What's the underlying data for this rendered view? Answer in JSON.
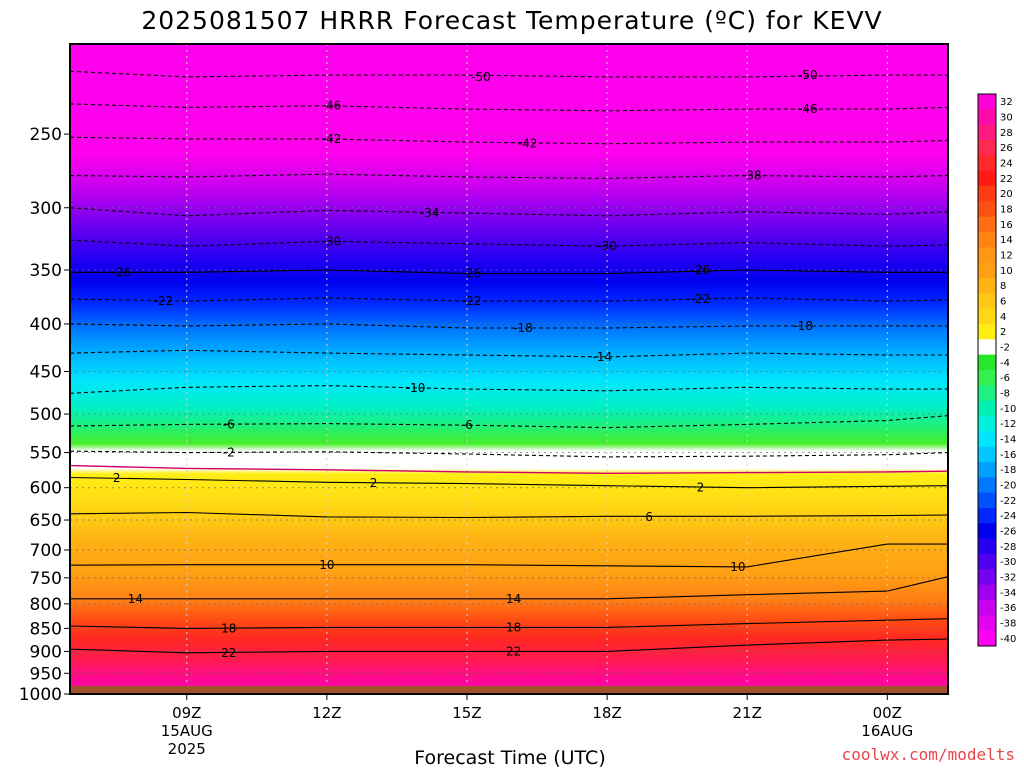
{
  "chart_data": {
    "type": "heatmap",
    "title": "2025081507 HRRR Forecast Temperature (ºC) for KEVV",
    "xlabel": "Forecast Time (UTC)",
    "ylabel": "",
    "credit": "coolwx.com/modelts",
    "y_scale": "log",
    "ylim": [
      1000,
      200
    ],
    "xlim": [
      6.5,
      25.3
    ],
    "y_ticks": [
      250,
      300,
      350,
      400,
      450,
      500,
      550,
      600,
      650,
      700,
      750,
      800,
      850,
      900,
      950,
      1000
    ],
    "x_ticks": [
      {
        "hour": 9,
        "label": "09Z",
        "date": "15AUG",
        "year": "2025"
      },
      {
        "hour": 12,
        "label": "12Z"
      },
      {
        "hour": 15,
        "label": "15Z"
      },
      {
        "hour": 18,
        "label": "18Z"
      },
      {
        "hour": 21,
        "label": "21Z"
      },
      {
        "hour": 24,
        "label": "00Z",
        "date": "16AUG"
      }
    ],
    "surface_pressure": 980,
    "colorbar": {
      "levels": [
        32,
        30,
        28,
        26,
        24,
        22,
        20,
        18,
        16,
        14,
        12,
        10,
        8,
        6,
        4,
        2,
        -2,
        -4,
        -6,
        -8,
        -10,
        -12,
        -14,
        -16,
        -18,
        -20,
        -22,
        -24,
        -26,
        -28,
        -30,
        -32,
        -34,
        -36,
        -38,
        -40
      ],
      "colors": [
        "#ff00d8",
        "#ff0aaa",
        "#ff1a80",
        "#ff2a50",
        "#ff2a28",
        "#ff1a14",
        "#ff3c14",
        "#ff5014",
        "#ff6e14",
        "#ff8214",
        "#ff9614",
        "#ffa014",
        "#ffb414",
        "#ffc814",
        "#ffd714",
        "#ffee14",
        "#ffffff",
        "#28e628",
        "#32f050",
        "#1ef082",
        "#00f0b4",
        "#00f0dc",
        "#00e6ff",
        "#00c8ff",
        "#00a0ff",
        "#0078ff",
        "#0050ff",
        "#0028ff",
        "#0000f0",
        "#2800f0",
        "#5000f0",
        "#7800f0",
        "#a000f0",
        "#c800f0",
        "#e600f0",
        "#ff00f0"
      ]
    },
    "series": [
      {
        "name": "-50",
        "hours": [
          6.5,
          9,
          12,
          15,
          18,
          21,
          24,
          25.3
        ],
        "pressure": [
          214,
          217,
          216,
          216,
          217,
          217,
          216,
          216
        ],
        "dashed": true,
        "labels": [
          [
            15.3,
            217
          ],
          [
            22.3,
            216
          ]
        ]
      },
      {
        "name": "-46",
        "hours": [
          6.5,
          9,
          12,
          15,
          18,
          21,
          24,
          25.3
        ],
        "pressure": [
          232,
          234,
          233,
          235,
          236,
          235,
          235,
          234
        ],
        "dashed": true,
        "labels": [
          [
            12.1,
            233
          ],
          [
            22.3,
            235
          ]
        ]
      },
      {
        "name": "-42",
        "hours": [
          6.5,
          9,
          12,
          15,
          18,
          21,
          24,
          25.3
        ],
        "pressure": [
          252,
          253,
          253,
          255,
          256,
          255,
          255,
          254
        ],
        "dashed": true,
        "labels": [
          [
            12.1,
            253
          ],
          [
            16.3,
            256
          ]
        ]
      },
      {
        "name": "-38",
        "hours": [
          6.5,
          9,
          12,
          15,
          18,
          21,
          24,
          25.3
        ],
        "pressure": [
          277,
          278,
          276,
          278,
          279,
          277,
          278,
          277
        ],
        "dashed": true,
        "labels": [
          [
            21.1,
            277
          ]
        ]
      },
      {
        "name": "-34",
        "hours": [
          6.5,
          9,
          12,
          15,
          18,
          21,
          24,
          25.3
        ],
        "pressure": [
          300,
          306,
          302,
          304,
          306,
          303,
          305,
          303
        ],
        "dashed": true,
        "labels": [
          [
            14.2,
            304
          ]
        ]
      },
      {
        "name": "-30",
        "hours": [
          6.5,
          9,
          12,
          15,
          18,
          21,
          24,
          25.3
        ],
        "pressure": [
          325,
          330,
          326,
          328,
          330,
          327,
          330,
          329
        ],
        "dashed": true,
        "labels": [
          [
            12.1,
            326
          ],
          [
            18.0,
            330
          ]
        ]
      },
      {
        "name": "-26",
        "hours": [
          6.5,
          9,
          12,
          15,
          18,
          21,
          24,
          25.3
        ],
        "pressure": [
          352,
          352,
          350,
          353,
          353,
          350,
          352,
          352
        ],
        "dashed": false,
        "labels": [
          [
            7.6,
            352
          ],
          [
            15.1,
            353
          ],
          [
            20.0,
            350
          ]
        ]
      },
      {
        "name": "-22",
        "hours": [
          6.5,
          9,
          12,
          15,
          18,
          21,
          24,
          25.3
        ],
        "pressure": [
          376,
          378,
          375,
          378,
          378,
          375,
          378,
          377
        ],
        "dashed": true,
        "labels": [
          [
            8.5,
            378
          ],
          [
            15.1,
            378
          ],
          [
            20.0,
            376
          ]
        ]
      },
      {
        "name": "-18",
        "hours": [
          6.5,
          9,
          12,
          15,
          18,
          21,
          24,
          25.3
        ],
        "pressure": [
          400,
          402,
          400,
          404,
          404,
          402,
          402,
          402
        ],
        "dashed": true,
        "labels": [
          [
            16.2,
            404
          ],
          [
            22.2,
            402
          ]
        ]
      },
      {
        "name": "-14",
        "hours": [
          6.5,
          9,
          12,
          15,
          18,
          21,
          24,
          25.3
        ],
        "pressure": [
          430,
          427,
          430,
          432,
          434,
          430,
          432,
          432
        ],
        "dashed": true,
        "labels": [
          [
            17.9,
            434
          ]
        ]
      },
      {
        "name": "-10",
        "hours": [
          6.5,
          9,
          12,
          15,
          18,
          21,
          24,
          25.3
        ],
        "pressure": [
          475,
          468,
          466,
          470,
          472,
          468,
          470,
          470
        ],
        "dashed": true,
        "labels": [
          [
            13.9,
            469
          ]
        ]
      },
      {
        "name": "-6",
        "hours": [
          6.5,
          9,
          12,
          15,
          18,
          21,
          24,
          25.3
        ],
        "pressure": [
          515,
          513,
          512,
          514,
          517,
          513,
          508,
          502
        ],
        "dashed": true,
        "labels": [
          [
            9.9,
            513
          ],
          [
            15.0,
            514
          ]
        ]
      },
      {
        "name": "-2",
        "hours": [
          6.5,
          9,
          12,
          15,
          18,
          21,
          24,
          25.3
        ],
        "pressure": [
          548,
          550,
          549,
          552,
          556,
          555,
          553,
          550
        ],
        "dashed": true,
        "labels": [
          [
            9.9,
            550
          ]
        ]
      },
      {
        "name": "0",
        "hours": [
          6.5,
          9,
          12,
          15,
          18,
          21,
          24,
          25.3
        ],
        "pressure": [
          568,
          572,
          574,
          577,
          579,
          578,
          577,
          576
        ],
        "dashed": false,
        "freezing": true,
        "labels": []
      },
      {
        "name": "2",
        "hours": [
          6.5,
          9,
          12,
          15,
          18,
          21,
          24,
          25.3
        ],
        "pressure": [
          585,
          588,
          592,
          594,
          597,
          600,
          598,
          597
        ],
        "dashed": false,
        "labels": [
          [
            7.5,
            586
          ],
          [
            13.0,
            593
          ],
          [
            20.0,
            600
          ]
        ]
      },
      {
        "name": "6",
        "hours": [
          6.5,
          9,
          12,
          15,
          18,
          21,
          24,
          25.3
        ],
        "pressure": [
          640,
          638,
          645,
          646,
          644,
          644,
          643,
          642
        ],
        "dashed": false,
        "labels": [
          [
            18.9,
            645
          ]
        ]
      },
      {
        "name": "10",
        "hours": [
          6.5,
          9,
          12,
          15,
          18,
          21,
          24,
          25.3
        ],
        "pressure": [
          727,
          726,
          726,
          726,
          728,
          730,
          690,
          690
        ],
        "dashed": false,
        "labels": [
          [
            12.0,
            727
          ],
          [
            20.8,
            730
          ]
        ]
      },
      {
        "name": "14",
        "hours": [
          6.5,
          9,
          12,
          15,
          18,
          21,
          24,
          25.3
        ],
        "pressure": [
          790,
          790,
          790,
          790,
          790,
          782,
          775,
          748
        ],
        "dashed": false,
        "labels": [
          [
            7.9,
            790
          ],
          [
            16.0,
            790
          ]
        ]
      },
      {
        "name": "18",
        "hours": [
          6.5,
          9,
          12,
          15,
          18,
          21,
          24,
          25.3
        ],
        "pressure": [
          845,
          850,
          848,
          848,
          848,
          840,
          833,
          830
        ],
        "dashed": false,
        "labels": [
          [
            9.9,
            850
          ],
          [
            16.0,
            848
          ]
        ]
      },
      {
        "name": "22",
        "hours": [
          6.5,
          9,
          12,
          15,
          18,
          21,
          24,
          25.3
        ],
        "pressure": [
          895,
          903,
          900,
          900,
          900,
          886,
          875,
          873
        ],
        "dashed": false,
        "labels": [
          [
            9.9,
            903
          ],
          [
            16.0,
            900
          ]
        ]
      }
    ],
    "color_bands": [
      {
        "p": 200,
        "color": "#ff00ee"
      },
      {
        "p": 262,
        "color": "#ff00ee"
      },
      {
        "p": 285,
        "color": "#c800f0"
      },
      {
        "p": 310,
        "color": "#7800f0"
      },
      {
        "p": 338,
        "color": "#2800f0"
      },
      {
        "p": 360,
        "color": "#0000f0"
      },
      {
        "p": 380,
        "color": "#0028ff"
      },
      {
        "p": 405,
        "color": "#0078ff"
      },
      {
        "p": 432,
        "color": "#00b4ff"
      },
      {
        "p": 460,
        "color": "#00e6ff"
      },
      {
        "p": 490,
        "color": "#00f0c8"
      },
      {
        "p": 515,
        "color": "#1ef07a"
      },
      {
        "p": 538,
        "color": "#46ee28"
      },
      {
        "p": 548,
        "color": "#ffffff"
      },
      {
        "p": 572,
        "color": "#ffffff"
      },
      {
        "p": 580,
        "color": "#ffee14"
      },
      {
        "p": 630,
        "color": "#ffd714"
      },
      {
        "p": 680,
        "color": "#ffb414"
      },
      {
        "p": 740,
        "color": "#ffa014"
      },
      {
        "p": 790,
        "color": "#ff8214"
      },
      {
        "p": 830,
        "color": "#ff5014"
      },
      {
        "p": 870,
        "color": "#ff2a20"
      },
      {
        "p": 920,
        "color": "#ff1a50"
      },
      {
        "p": 960,
        "color": "#ff0a8c"
      },
      {
        "p": 1000,
        "color": "#ff00c8"
      }
    ]
  }
}
